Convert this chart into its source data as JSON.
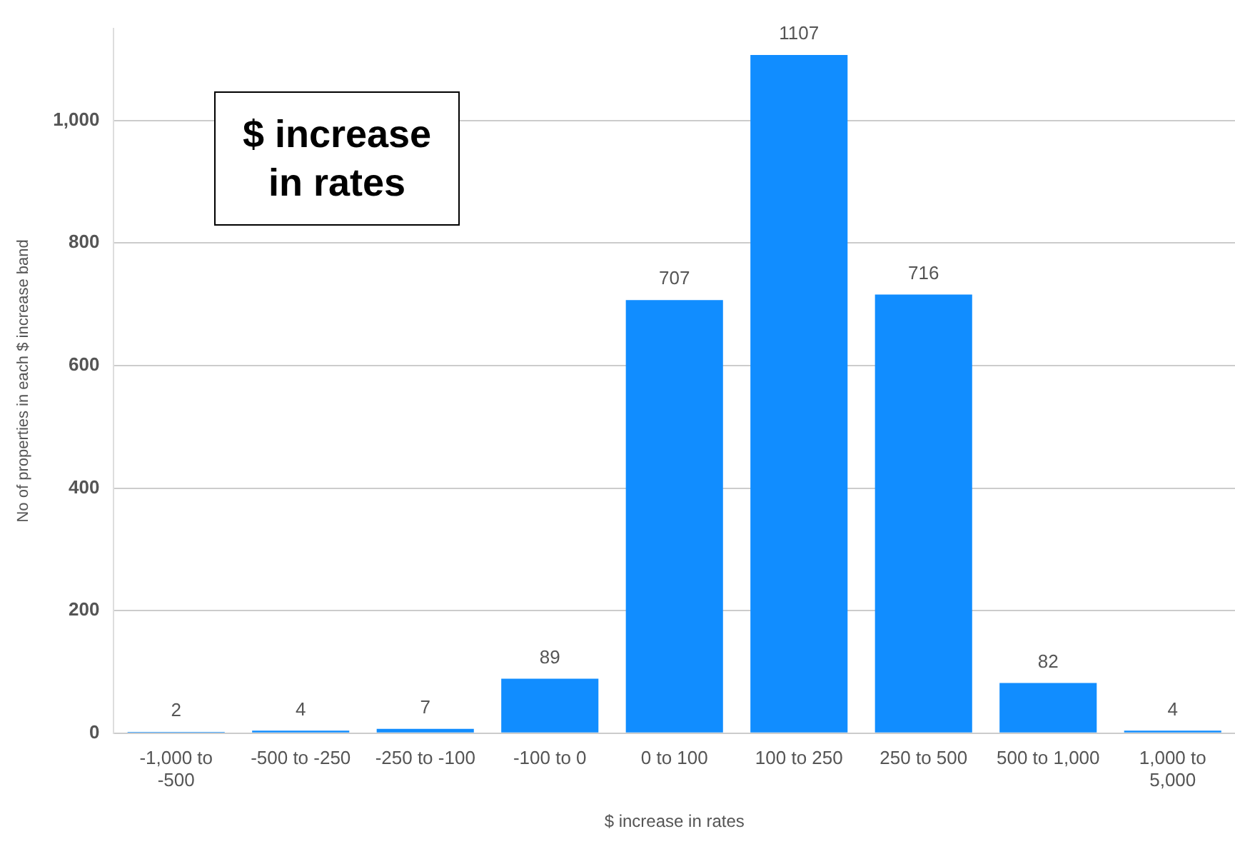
{
  "chart_data": {
    "type": "bar",
    "title": "$ increase in rates",
    "xlabel": "$ increase in rates",
    "ylabel": "No of properties in each $ increase band",
    "categories": [
      "-1,000 to -500",
      "-500 to -250",
      "-250 to -100",
      "-100 to 0",
      "0 to 100",
      "100 to 250",
      "250 to 500",
      "500 to 1,000",
      "1,000 to 5,000"
    ],
    "values": [
      2,
      4,
      7,
      89,
      707,
      1107,
      716,
      82,
      4
    ],
    "color": "#118dff",
    "ylim": [
      0,
      1150
    ],
    "yticks": [
      0,
      200,
      400,
      600,
      800,
      {
        "value": 1000,
        "label": "1,000"
      }
    ],
    "grid": "y",
    "data_labels": true
  }
}
